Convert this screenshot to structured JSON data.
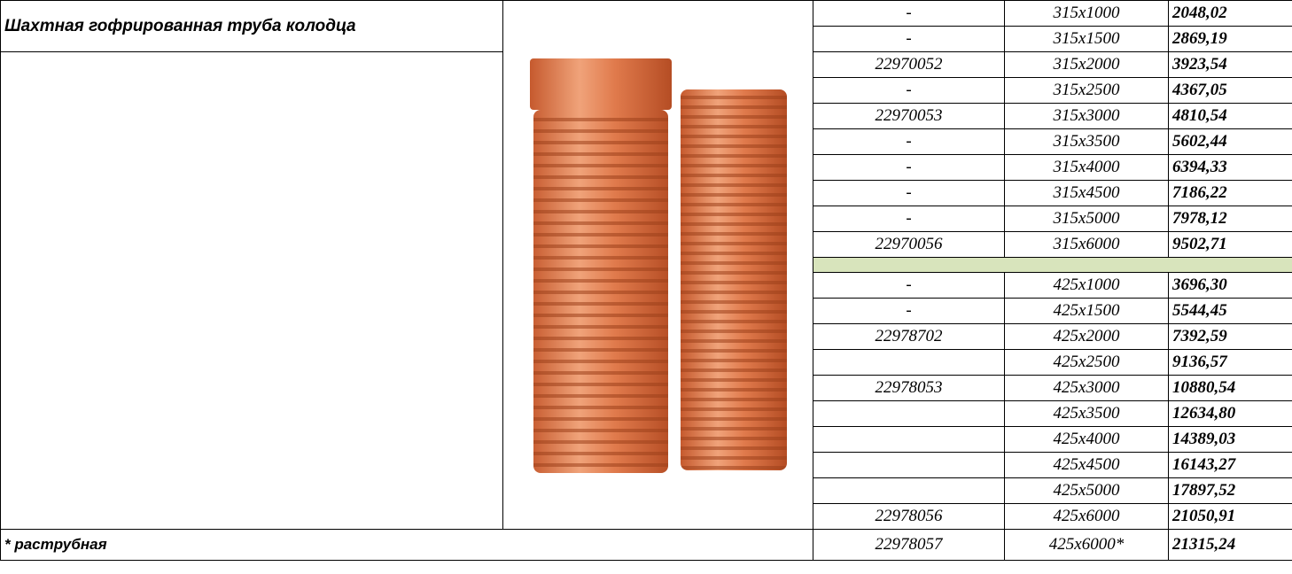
{
  "header": {
    "title": "Шахтная гофрированная труба колодца"
  },
  "table": {
    "rows": [
      {
        "code": "-",
        "size": "315x1000",
        "price": "2048,02"
      },
      {
        "code": "-",
        "size": "315x1500",
        "price": "2869,19"
      },
      {
        "code": "22970052",
        "size": "315x2000",
        "price": "3923,54"
      },
      {
        "code": "-",
        "size": "315x2500",
        "price": "4367,05"
      },
      {
        "code": "22970053",
        "size": "315x3000",
        "price": "4810,54"
      },
      {
        "code": "-",
        "size": "315x3500",
        "price": "5602,44"
      },
      {
        "code": "-",
        "size": "315x4000",
        "price": "6394,33"
      },
      {
        "code": "-",
        "size": "315x4500",
        "price": "7186,22"
      },
      {
        "code": "-",
        "size": "315x5000",
        "price": "7978,12"
      },
      {
        "code": "22970056",
        "size": "315x6000",
        "price": "9502,71"
      },
      {
        "separator": true
      },
      {
        "code": "-",
        "size": "425x1000",
        "price": "3696,30"
      },
      {
        "code": "-",
        "size": "425x1500",
        "price": "5544,45"
      },
      {
        "code": "22978702",
        "size": "425x2000",
        "price": "7392,59"
      },
      {
        "code": null,
        "size": "425x2500",
        "price": "9136,57"
      },
      {
        "code": "22978053",
        "size": "425x3000",
        "price": "10880,54"
      },
      {
        "code": null,
        "size": "425x3500",
        "price": "12634,80"
      },
      {
        "code": null,
        "size": "425x4000",
        "price": "14389,03"
      },
      {
        "code": null,
        "size": "425x4500",
        "price": "16143,27"
      },
      {
        "code": null,
        "size": "425x5000",
        "price": "17897,52"
      },
      {
        "code": "22978056",
        "size": "425x6000",
        "price": "21050,91"
      }
    ]
  },
  "footer": {
    "note": "* раструбная",
    "code": "22978057",
    "size": "425x6000*",
    "price": "21315,24"
  }
}
